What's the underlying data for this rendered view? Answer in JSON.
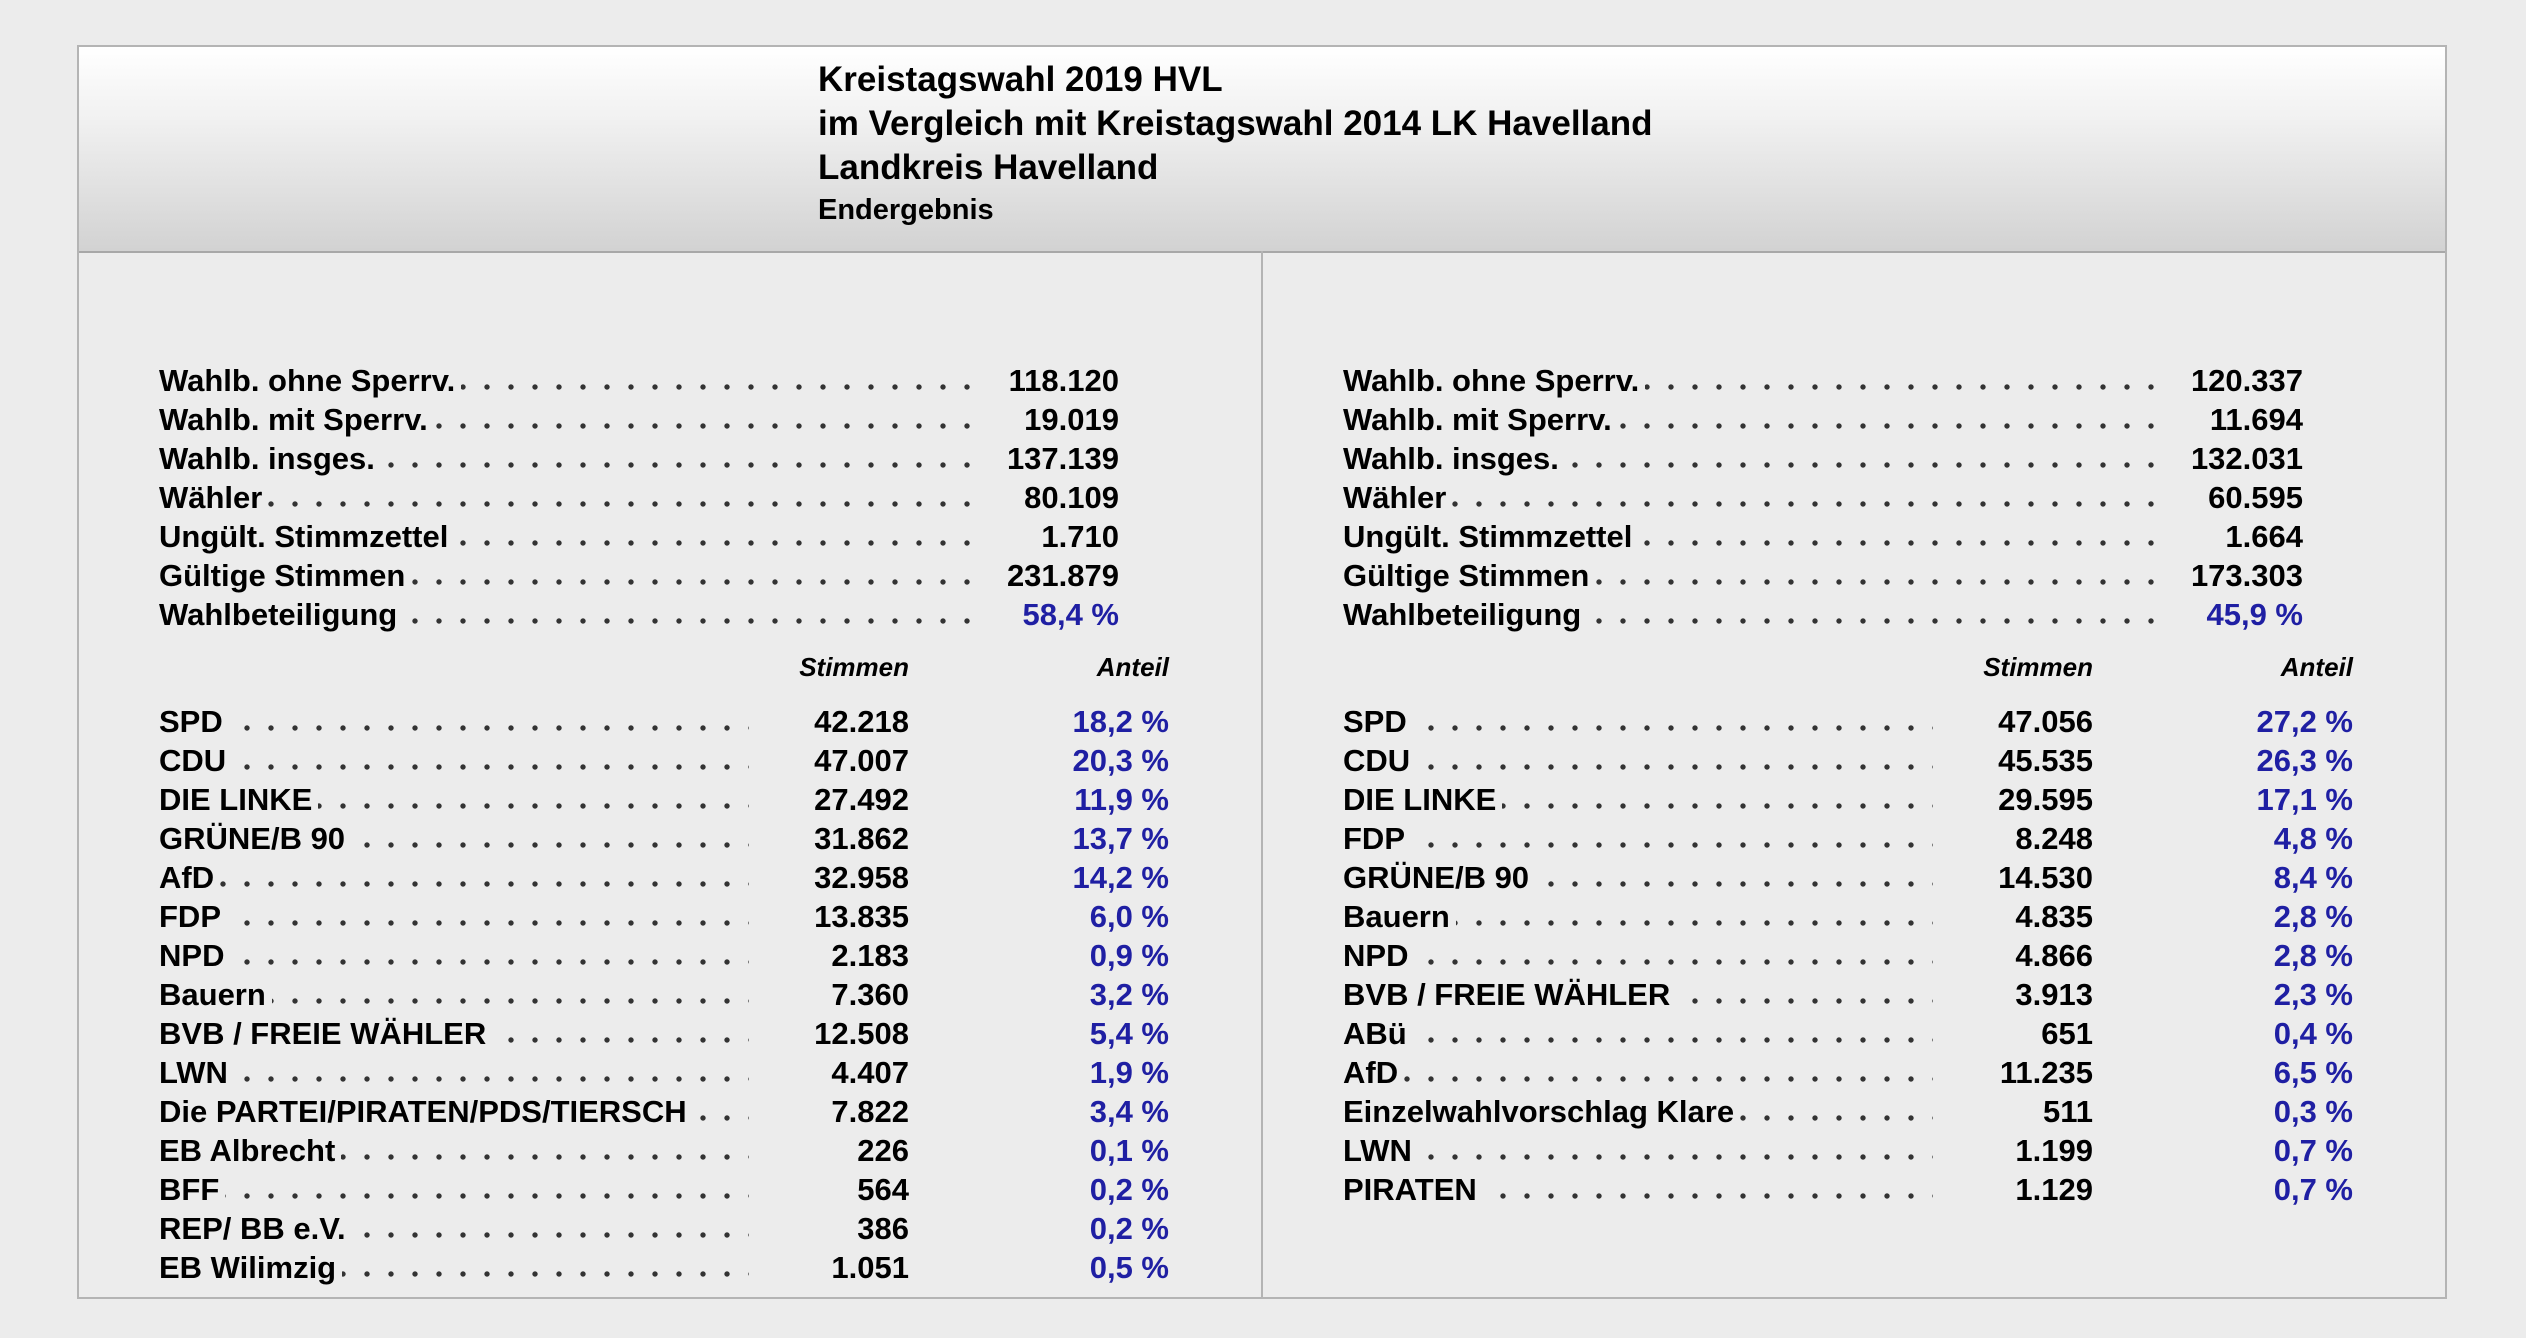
{
  "header": {
    "line1": "Kreistagswahl 2019 HVL",
    "line2": "im Vergleich mit Kreistagswahl 2014 LK Havelland",
    "line3": "Landkreis Havelland",
    "line4": "Endergebnis"
  },
  "columns": {
    "votes_header": "Stimmen",
    "share_header": "Anteil"
  },
  "left": {
    "summary": [
      {
        "label": "Wahlb. ohne Sperrv.",
        "value": "118.120"
      },
      {
        "label": "Wahlb. mit Sperrv.",
        "value": "19.019"
      },
      {
        "label": "Wahlb. insges.",
        "value": "137.139"
      },
      {
        "label": "Wähler",
        "value": "80.109"
      },
      {
        "label": "Ungült. Stimmzettel",
        "value": "1.710"
      },
      {
        "label": "Gültige Stimmen",
        "value": "231.879"
      },
      {
        "label": "Wahlbeteiligung",
        "value": "58,4 %"
      }
    ],
    "parties": [
      {
        "name": "SPD",
        "votes": "42.218",
        "share": "18,2 %"
      },
      {
        "name": "CDU",
        "votes": "47.007",
        "share": "20,3 %"
      },
      {
        "name": "DIE LINKE",
        "votes": "27.492",
        "share": "11,9 %"
      },
      {
        "name": "GRÜNE/B 90",
        "votes": "31.862",
        "share": "13,7 %"
      },
      {
        "name": "AfD",
        "votes": "32.958",
        "share": "14,2 %"
      },
      {
        "name": "FDP",
        "votes": "13.835",
        "share": "6,0 %"
      },
      {
        "name": "NPD",
        "votes": "2.183",
        "share": "0,9 %"
      },
      {
        "name": "Bauern",
        "votes": "7.360",
        "share": "3,2 %"
      },
      {
        "name": "BVB / FREIE WÄHLER",
        "votes": "12.508",
        "share": "5,4 %"
      },
      {
        "name": "LWN",
        "votes": "4.407",
        "share": "1,9 %"
      },
      {
        "name": "Die PARTEI/PIRATEN/PDS/TIERSCH",
        "votes": "7.822",
        "share": "3,4 %"
      },
      {
        "name": "EB Albrecht",
        "votes": "226",
        "share": "0,1 %"
      },
      {
        "name": "BFF",
        "votes": "564",
        "share": "0,2 %"
      },
      {
        "name": "REP/ BB e.V.",
        "votes": "386",
        "share": "0,2 %"
      },
      {
        "name": "EB Wilimzig",
        "votes": "1.051",
        "share": "0,5 %"
      }
    ]
  },
  "right": {
    "summary": [
      {
        "label": "Wahlb. ohne Sperrv.",
        "value": "120.337"
      },
      {
        "label": "Wahlb. mit Sperrv.",
        "value": "11.694"
      },
      {
        "label": "Wahlb. insges.",
        "value": "132.031"
      },
      {
        "label": "Wähler",
        "value": "60.595"
      },
      {
        "label": "Ungült. Stimmzettel",
        "value": "1.664"
      },
      {
        "label": "Gültige Stimmen",
        "value": "173.303"
      },
      {
        "label": "Wahlbeteiligung",
        "value": "45,9 %"
      }
    ],
    "parties": [
      {
        "name": "SPD",
        "votes": "47.056",
        "share": "27,2 %"
      },
      {
        "name": "CDU",
        "votes": "45.535",
        "share": "26,3 %"
      },
      {
        "name": "DIE LINKE",
        "votes": "29.595",
        "share": "17,1 %"
      },
      {
        "name": "FDP",
        "votes": "8.248",
        "share": "4,8 %"
      },
      {
        "name": "GRÜNE/B 90",
        "votes": "14.530",
        "share": "8,4 %"
      },
      {
        "name": "Bauern",
        "votes": "4.835",
        "share": "2,8 %"
      },
      {
        "name": "NPD",
        "votes": "4.866",
        "share": "2,8 %"
      },
      {
        "name": "BVB / FREIE WÄHLER",
        "votes": "3.913",
        "share": "2,3 %"
      },
      {
        "name": "ABü",
        "votes": "651",
        "share": "0,4 %"
      },
      {
        "name": "AfD",
        "votes": "11.235",
        "share": "6,5 %"
      },
      {
        "name": "Einzelwahlvorschlag Klare",
        "votes": "511",
        "share": "0,3 %"
      },
      {
        "name": "LWN",
        "votes": "1.199",
        "share": "0,7 %"
      },
      {
        "name": "PIRATEN",
        "votes": "1.129",
        "share": "0,7 %"
      }
    ]
  }
}
